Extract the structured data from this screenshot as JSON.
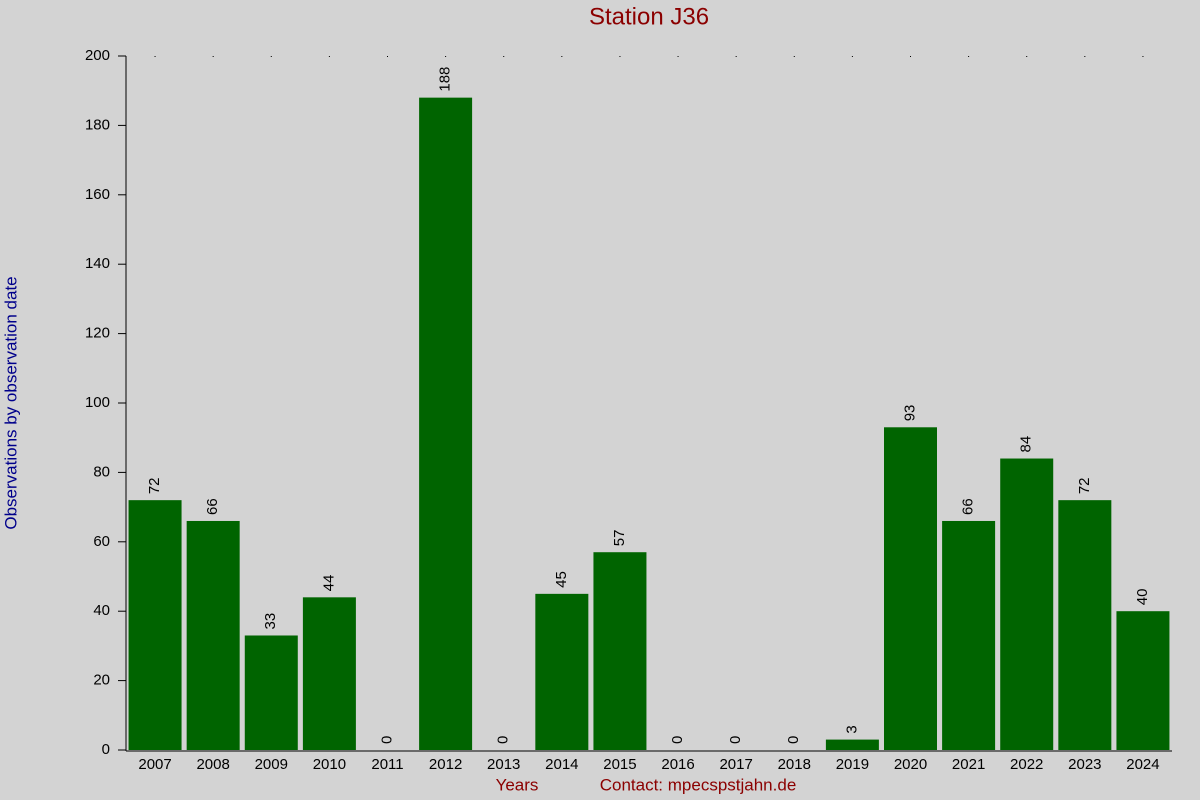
{
  "chart_data": {
    "type": "bar",
    "title": "Station J36",
    "x_label": "Years",
    "y_label": "Observations by observation date",
    "annotation": "Contact: mpecspstjahn.de",
    "categories": [
      "2007",
      "2008",
      "2009",
      "2010",
      "2011",
      "2012",
      "2013",
      "2014",
      "2015",
      "2016",
      "2017",
      "2018",
      "2019",
      "2020",
      "2021",
      "2022",
      "2023",
      "2024"
    ],
    "values": [
      72,
      66,
      33,
      44,
      0,
      188,
      0,
      45,
      57,
      0,
      0,
      0,
      3,
      93,
      66,
      84,
      72,
      40
    ],
    "color": "#006400",
    "ylim": [
      0,
      200
    ],
    "yticks": [
      0,
      20,
      40,
      60,
      80,
      100,
      120,
      140,
      160,
      180,
      200
    ]
  }
}
